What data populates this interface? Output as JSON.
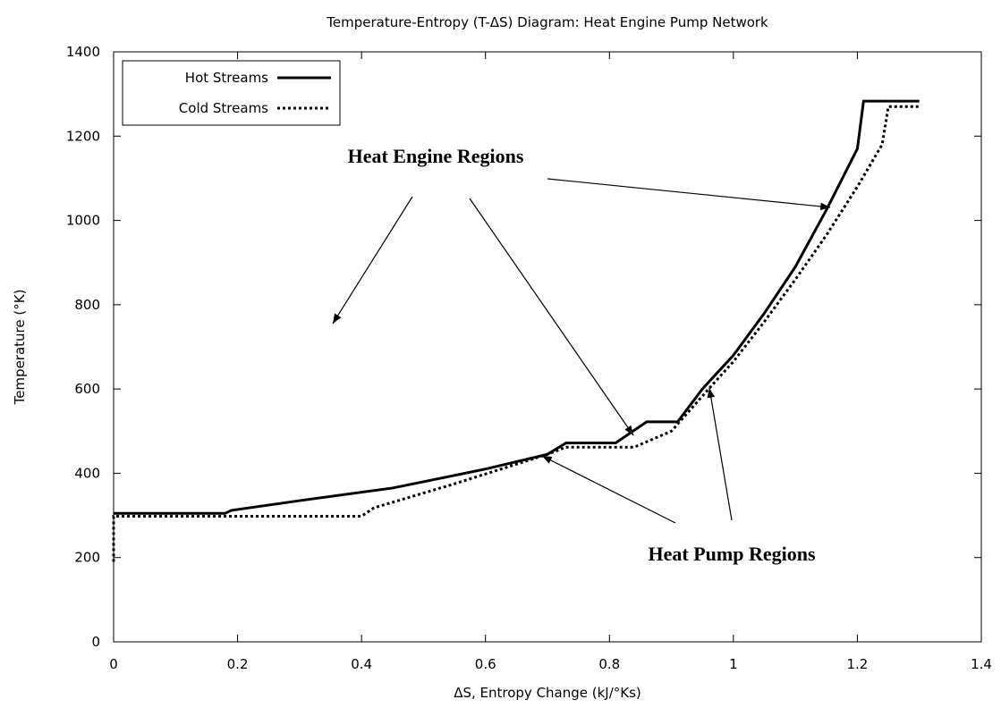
{
  "chart_data": {
    "type": "line",
    "title": "Temperature-Entropy (T-ΔS) Diagram: Heat Engine Pump Network",
    "xlabel": "ΔS, Entropy Change (kJ/°Ks)",
    "ylabel": "Temperature (°K)",
    "xlim": [
      0,
      1.4
    ],
    "ylim": [
      0,
      1400
    ],
    "xticks": [
      0,
      0.2,
      0.4,
      0.6,
      0.8,
      1,
      1.2,
      1.4
    ],
    "yticks": [
      0,
      200,
      400,
      600,
      800,
      1000,
      1200,
      1400
    ],
    "legend": "upper left",
    "series": [
      {
        "name": "Hot Streams",
        "color": "#000000",
        "dash": "solid",
        "x": [
          0,
          0.18,
          0.19,
          0.3,
          0.45,
          0.6,
          0.7,
          0.73,
          0.81,
          0.86,
          0.91,
          0.95,
          1.0,
          1.05,
          1.1,
          1.15,
          1.2,
          1.21,
          1.3
        ],
        "values": [
          305,
          305,
          312,
          335,
          365,
          410,
          445,
          472,
          472,
          522,
          522,
          600,
          680,
          780,
          890,
          1025,
          1170,
          1283,
          1283
        ]
      },
      {
        "name": "Cold Streams",
        "color": "#000000",
        "dash": "dotted",
        "x": [
          0,
          0,
          0.4,
          0.42,
          0.55,
          0.7,
          0.73,
          0.84,
          0.9,
          0.96,
          1.0,
          1.05,
          1.1,
          1.15,
          1.2,
          1.24,
          1.25,
          1.3
        ],
        "values": [
          190,
          298,
          298,
          318,
          375,
          445,
          462,
          462,
          500,
          600,
          665,
          760,
          860,
          965,
          1080,
          1180,
          1270,
          1270
        ]
      }
    ],
    "annotations": [
      "Heat Engine Regions",
      "Heat Pump Regions"
    ]
  }
}
